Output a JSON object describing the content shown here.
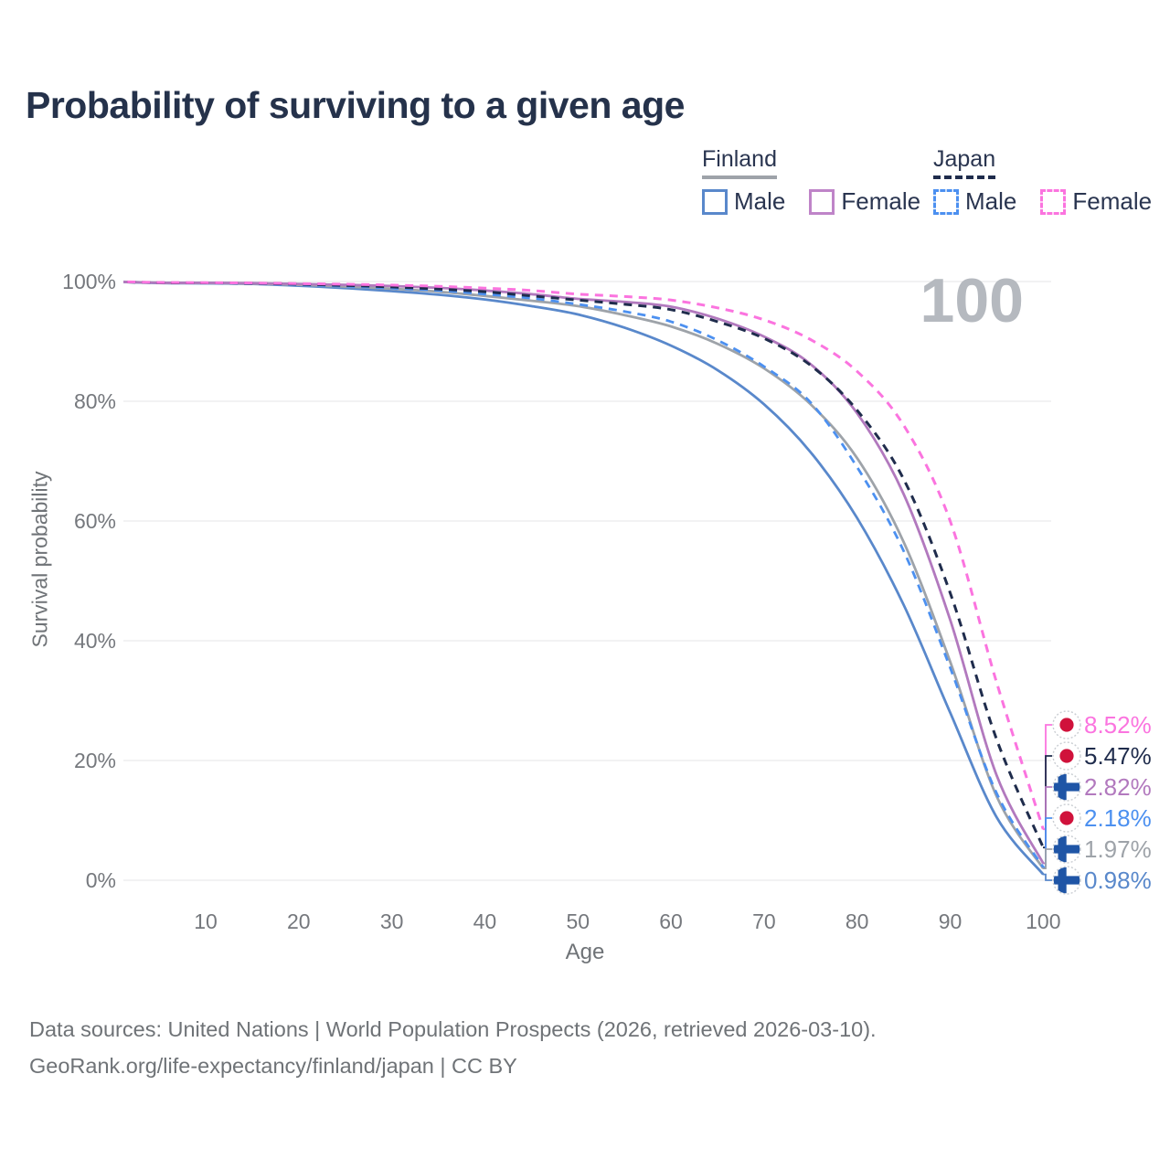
{
  "title": "Probability of surviving to a given age",
  "watermark_age": "100",
  "legend": {
    "groups": [
      {
        "label": "Finland",
        "line_style": "solid",
        "line_color": "#9EA3A9",
        "items": [
          {
            "label": "Male",
            "color": "#5988CB",
            "dash": false
          },
          {
            "label": "Female",
            "color": "#BF84C8",
            "dash": false
          }
        ]
      },
      {
        "label": "Japan",
        "line_style": "dashed",
        "line_color": "#1F2C4C",
        "items": [
          {
            "label": "Male",
            "color": "#4C90F0",
            "dash": true
          },
          {
            "label": "Female",
            "color": "#FB74DF",
            "dash": true
          }
        ]
      }
    ]
  },
  "chart_data": {
    "type": "line",
    "title": "Probability of surviving to a given age",
    "xlabel": "Age",
    "ylabel": "Survival probability",
    "xlim": [
      0,
      100
    ],
    "ylim": [
      0,
      100
    ],
    "grid": true,
    "x_ticks": [
      10,
      20,
      30,
      40,
      50,
      60,
      70,
      80,
      90,
      100
    ],
    "y_ticks": [
      "0%",
      "20%",
      "40%",
      "60%",
      "80%",
      "100%"
    ],
    "x": [
      0,
      5,
      10,
      15,
      20,
      25,
      30,
      35,
      40,
      45,
      50,
      55,
      60,
      65,
      70,
      75,
      80,
      85,
      90,
      95,
      100
    ],
    "series": [
      {
        "name": "Japan Female",
        "country": "japan",
        "sex": "female",
        "color": "#FB74DF",
        "dash": true,
        "width": 3,
        "end_label": "8.52%",
        "values": [
          100,
          99.85,
          99.8,
          99.75,
          99.65,
          99.55,
          99.4,
          99.2,
          98.9,
          98.5,
          97.9,
          97.5,
          96.9,
          95.6,
          93.6,
          90.3,
          85.0,
          76.0,
          60.0,
          33.0,
          8.52
        ]
      },
      {
        "name": "Japan Both Sexes",
        "country": "japan",
        "sex": "both",
        "color": "#1F2C4C",
        "dash": true,
        "width": 3,
        "end_label": "5.47%",
        "values": [
          100,
          99.8,
          99.77,
          99.7,
          99.55,
          99.35,
          99.1,
          98.75,
          98.3,
          97.6,
          96.9,
          96.2,
          95.3,
          93.3,
          90.5,
          86.0,
          78.5,
          67.0,
          48.0,
          23.5,
          5.47
        ]
      },
      {
        "name": "Finland Female",
        "country": "finland",
        "sex": "female",
        "color": "#B279BE",
        "dash": false,
        "width": 2.8,
        "end_label": "2.82%",
        "values": [
          100,
          99.8,
          99.78,
          99.72,
          99.6,
          99.45,
          99.25,
          98.95,
          98.5,
          97.9,
          97.1,
          96.6,
          95.8,
          93.8,
          90.8,
          86.2,
          78.0,
          64.5,
          43.5,
          17.5,
          2.82
        ]
      },
      {
        "name": "Japan Male",
        "country": "japan",
        "sex": "male",
        "color": "#4C90F0",
        "dash": true,
        "width": 2.8,
        "end_label": "2.18%",
        "values": [
          100,
          99.8,
          99.75,
          99.65,
          99.45,
          99.2,
          98.9,
          98.5,
          97.9,
          97.2,
          96.2,
          95.0,
          93.3,
          90.2,
          85.8,
          79.8,
          69.0,
          55.0,
          35.5,
          14.5,
          2.18
        ]
      },
      {
        "name": "Finland Both Sexes",
        "country": "finland",
        "sex": "both",
        "color": "#9EA3A9",
        "dash": false,
        "width": 2.8,
        "end_label": "1.97%",
        "values": [
          100,
          99.8,
          99.75,
          99.65,
          99.45,
          99.15,
          98.8,
          98.3,
          97.6,
          96.8,
          95.9,
          94.4,
          92.5,
          89.6,
          85.5,
          79.5,
          70.5,
          56.5,
          36.5,
          14.0,
          1.97
        ]
      },
      {
        "name": "Finland Male",
        "country": "finland",
        "sex": "male",
        "color": "#5988CB",
        "dash": false,
        "width": 2.8,
        "end_label": "0.98%",
        "values": [
          100,
          99.75,
          99.7,
          99.6,
          99.3,
          98.9,
          98.4,
          97.8,
          97.0,
          95.9,
          94.5,
          92.3,
          89.3,
          85.2,
          79.5,
          71.5,
          60.5,
          46.0,
          28.0,
          10.5,
          0.98
        ]
      }
    ],
    "legend_position": "top-right",
    "hover_age": "100"
  },
  "flag_colors": {
    "japan_red": "#D0123B",
    "finland_blue": "#1F55A6"
  },
  "footer": {
    "line1": "Data sources: United Nations | World Population Prospects (2026, retrieved 2026-03-10).",
    "line2": "GeoRank.org/life-expectancy/finland/japan | CC BY"
  }
}
